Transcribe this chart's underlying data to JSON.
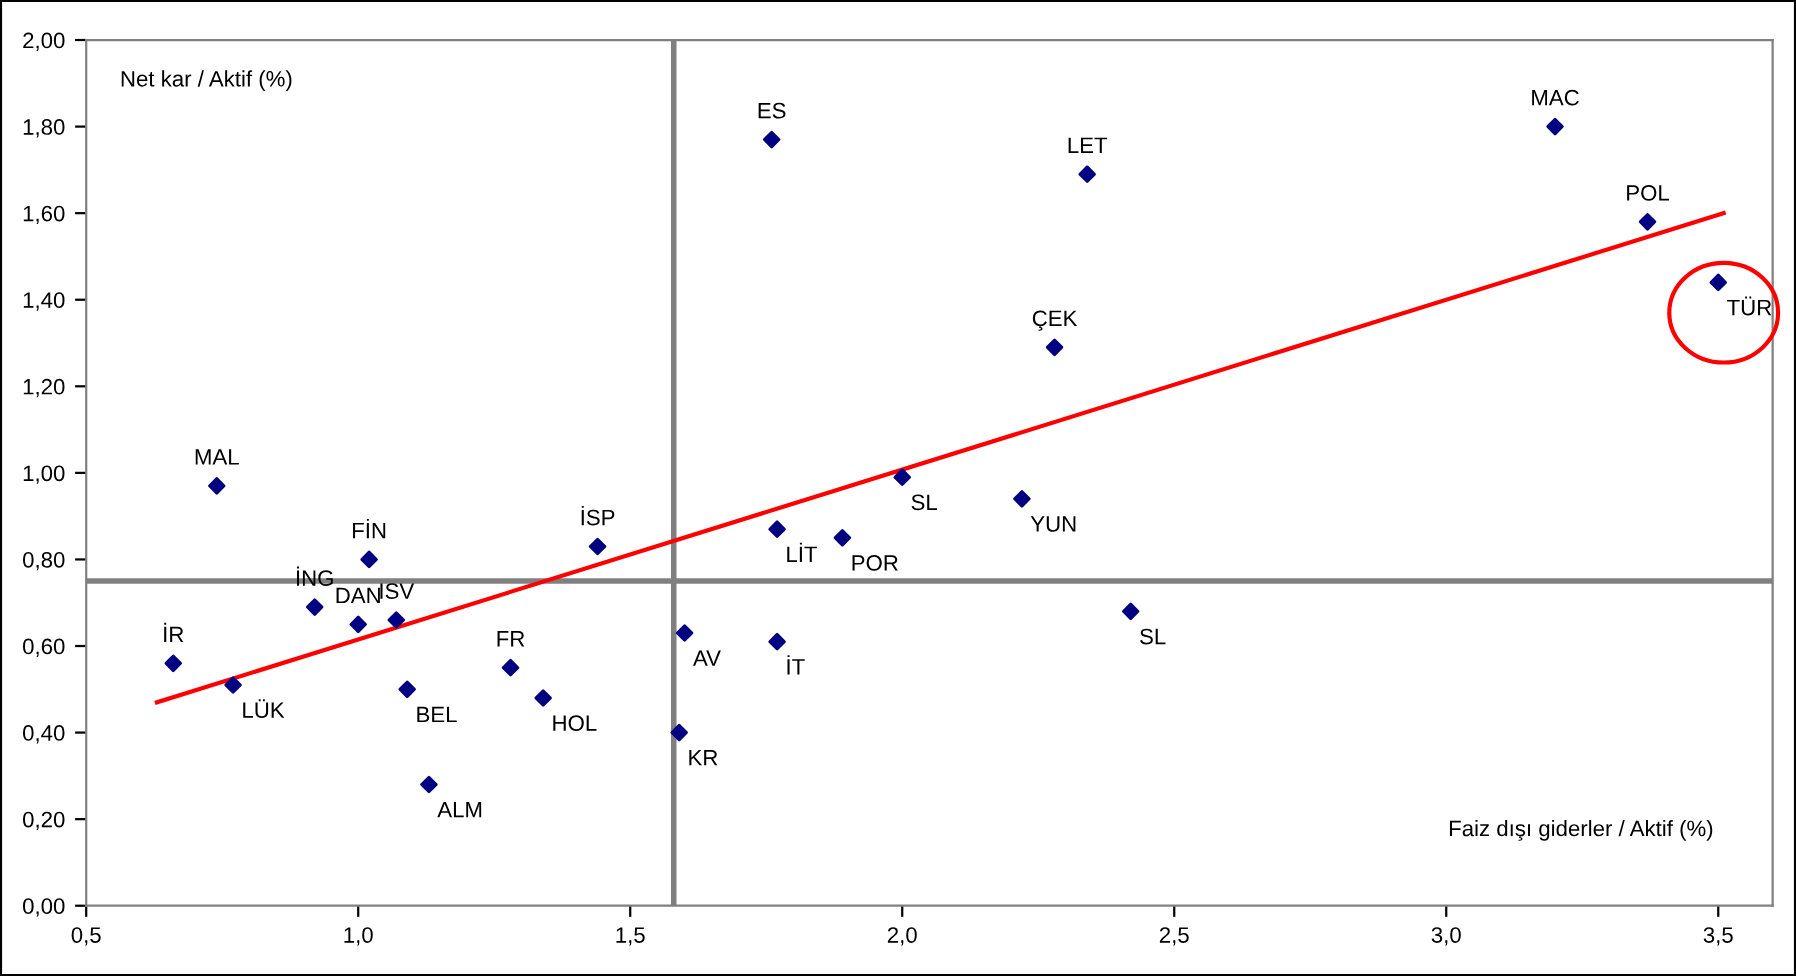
{
  "chart_data": {
    "type": "scatter",
    "xlabel": "Faiz dışı giderler / Aktif (%)",
    "ylabel": "Net kar / Aktif (%)",
    "xlim": [
      0.5,
      3.6
    ],
    "ylim": [
      0,
      2
    ],
    "xticks": [
      {
        "value": 0.5,
        "label": "0,5"
      },
      {
        "value": 1.0,
        "label": "1,0"
      },
      {
        "value": 1.5,
        "label": "1,5"
      },
      {
        "value": 2.0,
        "label": "2,0"
      },
      {
        "value": 2.5,
        "label": "2,5"
      },
      {
        "value": 3.0,
        "label": "3,0"
      },
      {
        "value": 3.5,
        "label": "3,5"
      }
    ],
    "yticks": [
      {
        "value": 0,
        "label": "0,00"
      },
      {
        "value": 0.2,
        "label": "0,20"
      },
      {
        "value": 0.4,
        "label": "0,40"
      },
      {
        "value": 0.6,
        "label": "0,60"
      },
      {
        "value": 0.8,
        "label": "0,80"
      },
      {
        "value": 1.0,
        "label": "1,00"
      },
      {
        "value": 1.2,
        "label": "1,20"
      },
      {
        "value": 1.4,
        "label": "1,40"
      },
      {
        "value": 1.6,
        "label": "1,60"
      },
      {
        "value": 1.8,
        "label": "1,80"
      },
      {
        "value": 2.0,
        "label": "2,00"
      }
    ],
    "grid": false,
    "series": [
      {
        "marker": "diamond",
        "color": "#000080",
        "x": [
          0.66,
          0.77,
          0.74,
          0.92,
          1.0,
          1.07,
          1.02,
          1.09,
          1.13,
          1.28,
          1.34,
          1.44,
          1.59,
          1.6,
          1.77,
          1.77,
          1.89,
          2.0,
          2.22,
          2.28,
          2.34,
          1.76,
          2.42,
          3.2,
          3.37,
          3.5
        ],
        "values": [
          0.56,
          0.51,
          0.97,
          0.69,
          0.65,
          0.66,
          0.8,
          0.5,
          0.28,
          0.55,
          0.48,
          0.83,
          0.4,
          0.63,
          0.87,
          0.61,
          0.85,
          0.99,
          0.94,
          1.29,
          1.69,
          1.77,
          0.68,
          1.8,
          1.58,
          1.44
        ]
      },
      {
        "type": "line",
        "color": "#ff0000",
        "x": [
          0.63,
          3.51
        ],
        "values": [
          0.47,
          1.6
        ]
      }
    ],
    "ref_lines": [
      {
        "axis": "x",
        "value": 1.58,
        "color": "#808080"
      },
      {
        "axis": "y",
        "value": 0.75,
        "color": "#808080"
      }
    ],
    "annotations": [
      {
        "text": "İR",
        "x": 0.66,
        "y": 0.56
      },
      {
        "text": "LÜK",
        "x": 0.77,
        "y": 0.51
      },
      {
        "text": "MAL",
        "x": 0.74,
        "y": 0.97
      },
      {
        "text": "İNG",
        "x": 0.92,
        "y": 0.69
      },
      {
        "text": "DAN",
        "x": 1.0,
        "y": 0.65
      },
      {
        "text": "ISV",
        "x": 1.07,
        "y": 0.66
      },
      {
        "text": "FİN",
        "x": 1.02,
        "y": 0.8
      },
      {
        "text": "BEL",
        "x": 1.09,
        "y": 0.5
      },
      {
        "text": "ALM",
        "x": 1.13,
        "y": 0.28
      },
      {
        "text": "FR",
        "x": 1.28,
        "y": 0.55
      },
      {
        "text": "HOL",
        "x": 1.34,
        "y": 0.48
      },
      {
        "text": "İSP",
        "x": 1.44,
        "y": 0.83
      },
      {
        "text": "KR",
        "x": 1.59,
        "y": 0.4
      },
      {
        "text": "AV",
        "x": 1.6,
        "y": 0.63
      },
      {
        "text": "LİT",
        "x": 1.77,
        "y": 0.87
      },
      {
        "text": "İT",
        "x": 1.77,
        "y": 0.61
      },
      {
        "text": "POR",
        "x": 1.89,
        "y": 0.85
      },
      {
        "text": "SL",
        "x": 2.0,
        "y": 0.99
      },
      {
        "text": "YUN",
        "x": 2.22,
        "y": 0.94
      },
      {
        "text": "ÇEK",
        "x": 2.28,
        "y": 1.29
      },
      {
        "text": "LET",
        "x": 2.34,
        "y": 1.69
      },
      {
        "text": "ES",
        "x": 1.76,
        "y": 1.77
      },
      {
        "text": "SL",
        "x": 2.42,
        "y": 0.68
      },
      {
        "text": "MAC",
        "x": 3.2,
        "y": 1.8
      },
      {
        "text": "POL",
        "x": 3.37,
        "y": 1.58
      },
      {
        "text": "TÜR",
        "x": 3.5,
        "y": 1.44
      }
    ]
  }
}
